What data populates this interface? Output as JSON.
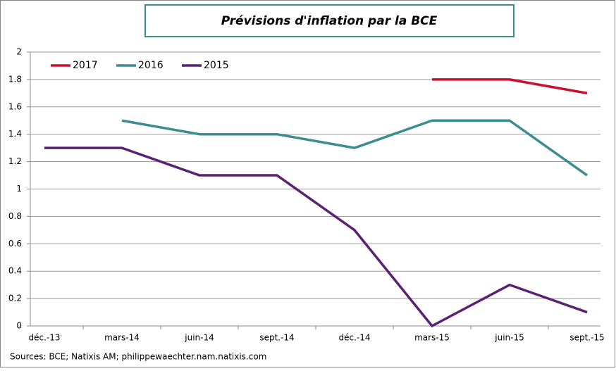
{
  "chart_data": {
    "type": "line",
    "title": "Prévisions d'inflation par la BCE",
    "categories": [
      "déc.-13",
      "mars-14",
      "juin-14",
      "sept.-14",
      "déc.-14",
      "mars-15",
      "juin-15",
      "sept.-15"
    ],
    "series": [
      {
        "name": "2017",
        "color": "#c8102e",
        "values": [
          null,
          null,
          null,
          null,
          null,
          1.8,
          1.8,
          1.7
        ]
      },
      {
        "name": "2016",
        "color": "#3b8d8f",
        "values": [
          null,
          1.5,
          1.4,
          1.4,
          1.3,
          1.5,
          1.5,
          1.1
        ]
      },
      {
        "name": "2015",
        "color": "#5b2173",
        "values": [
          1.3,
          1.3,
          1.1,
          1.1,
          0.7,
          0,
          0.3,
          0.1
        ]
      }
    ],
    "ylim": [
      0,
      2
    ],
    "yticks": [
      0,
      0.2,
      0.4,
      0.6,
      0.8,
      1,
      1.2,
      1.4,
      1.6,
      1.8,
      2
    ],
    "grid": true,
    "legend": "top-left",
    "source": "Sources: BCE; Natixis AM; philippewaechter.nam.natixis.com"
  }
}
